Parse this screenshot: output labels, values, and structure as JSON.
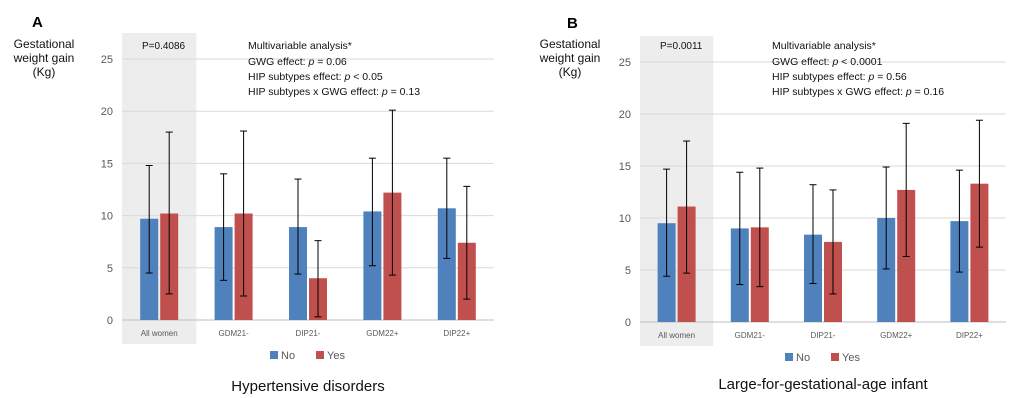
{
  "colors": {
    "no": "#4f81bd",
    "yes": "#c0504d",
    "highlight": "#ededed",
    "grid": "#d9d9d9",
    "axis_text": "#595959",
    "text": "#111111",
    "error_bar": "#000000"
  },
  "chart_data": [
    {
      "type": "bar",
      "panel_label": "A",
      "ylabel": [
        "Gestational",
        "weight gain",
        "(Kg)"
      ],
      "xlabel": "Hypertensive disorders",
      "categories": [
        "All women",
        "GDM21-",
        "DIP21-",
        "GDM22+",
        "DIP22+"
      ],
      "highlight_category": "All women",
      "ylim": [
        0,
        25
      ],
      "yticks": [
        "0",
        "5",
        "10",
        "15",
        "20",
        "25"
      ],
      "grid": true,
      "legend_position": "bottom",
      "series": [
        {
          "name": "No",
          "color": "#4f81bd",
          "values": [
            9.7,
            8.9,
            8.9,
            10.4,
            10.7
          ],
          "err_low": [
            4.5,
            3.8,
            4.4,
            5.2,
            5.9
          ],
          "err_high": [
            14.8,
            14.0,
            13.5,
            15.5,
            15.5
          ]
        },
        {
          "name": "Yes",
          "color": "#c0504d",
          "values": [
            10.2,
            10.2,
            4.0,
            12.2,
            7.4
          ],
          "err_low": [
            2.5,
            2.3,
            0.3,
            4.3,
            2.0
          ],
          "err_high": [
            18.0,
            18.1,
            7.6,
            20.1,
            12.8
          ]
        }
      ],
      "annotations": {
        "p_value": "P=0.4086",
        "analysis_title": "Multivariable analysis*",
        "effects": [
          {
            "label": "GWG effect: ",
            "p": "p",
            "value": " = 0.06"
          },
          {
            "label": "HIP subtypes effect: ",
            "p": "p",
            "value": " < 0.05"
          },
          {
            "label": "HIP subtypes x GWG effect: ",
            "p": "p",
            "value": " = 0.13"
          }
        ]
      }
    },
    {
      "type": "bar",
      "panel_label": "B",
      "ylabel": [
        "Gestational",
        "weight gain",
        "(Kg)"
      ],
      "xlabel": "Large-for-gestational-age infant",
      "categories": [
        "All women",
        "GDM21-",
        "DIP21-",
        "GDM22+",
        "DIP22+"
      ],
      "highlight_category": "All women",
      "ylim": [
        0,
        25
      ],
      "yticks": [
        "0",
        "5",
        "10",
        "15",
        "20",
        "25"
      ],
      "grid": true,
      "legend_position": "bottom",
      "series": [
        {
          "name": "No",
          "color": "#4f81bd",
          "values": [
            9.5,
            9.0,
            8.4,
            10.0,
            9.7
          ],
          "err_low": [
            4.4,
            3.6,
            3.7,
            5.1,
            4.8
          ],
          "err_high": [
            14.7,
            14.4,
            13.2,
            14.9,
            14.6
          ]
        },
        {
          "name": "Yes",
          "color": "#c0504d",
          "values": [
            11.1,
            9.1,
            7.7,
            12.7,
            13.3
          ],
          "err_low": [
            4.7,
            3.4,
            2.7,
            6.3,
            7.2
          ],
          "err_high": [
            17.4,
            14.8,
            12.7,
            19.1,
            19.4
          ]
        }
      ],
      "annotations": {
        "p_value": "P=0.0011",
        "analysis_title": "Multivariable analysis*",
        "effects": [
          {
            "label": "GWG effect: ",
            "p": "p",
            "value": " < 0.0001"
          },
          {
            "label": "HIP subtypes effect: ",
            "p": "p",
            "value": " = 0.56"
          },
          {
            "label": "HIP subtypes x GWG effect: ",
            "p": "p",
            "value": " = 0.16"
          }
        ]
      }
    }
  ]
}
